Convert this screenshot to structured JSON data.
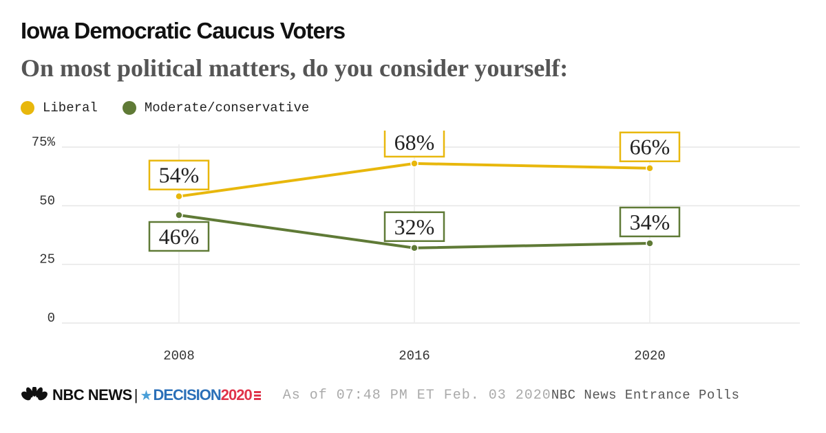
{
  "chart_data": {
    "type": "line",
    "title": "Iowa Democratic Caucus Voters",
    "subtitle": "On most political matters, do you consider yourself:",
    "x": [
      "2008",
      "2016",
      "2020"
    ],
    "series": [
      {
        "name": "Liberal",
        "color": "#e8b70c",
        "values": [
          54,
          68,
          66
        ],
        "labels": [
          "54%",
          "68%",
          "66%"
        ],
        "label_position": "above"
      },
      {
        "name": "Moderate/conservative",
        "color": "#5f7a36",
        "values": [
          46,
          32,
          34
        ],
        "labels": [
          "46%",
          "32%",
          "34%"
        ],
        "label_position": [
          "below",
          "above",
          "above"
        ]
      }
    ],
    "ylim": [
      0,
      75
    ],
    "yticks": [
      0,
      25,
      50,
      75
    ],
    "ytick_labels": [
      "0",
      "25",
      "50",
      "75%"
    ],
    "grid": true,
    "legend": "top-left",
    "xlabel": "",
    "ylabel": ""
  },
  "footer": {
    "brand": "NBC NEWS",
    "separator": "|",
    "star": "★",
    "decision_word": "DECISION",
    "decision_year": "2020",
    "as_of": "As of 07:48 PM ET Feb. 03 2020",
    "source": "NBC News Entrance Polls"
  }
}
